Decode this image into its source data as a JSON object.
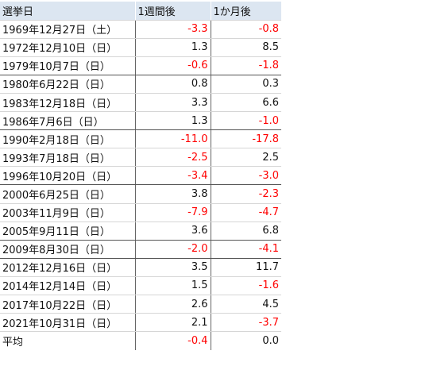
{
  "headers": {
    "date": "選挙日",
    "week": "1週間後",
    "month": "1か月後"
  },
  "rows": [
    {
      "date": "1969年12月27日（土）",
      "week": "-3.3",
      "month": "-0.8"
    },
    {
      "date": "1972年12月10日（日）",
      "week": "1.3",
      "month": "8.5"
    },
    {
      "date": "1979年10月7日（日）",
      "week": "-0.6",
      "month": "-1.8"
    },
    {
      "date": "1980年6月22日（日）",
      "week": "0.8",
      "month": "0.3"
    },
    {
      "date": "1983年12月18日（日）",
      "week": "3.3",
      "month": "6.6"
    },
    {
      "date": "1986年7月6日（日）",
      "week": "1.3",
      "month": "-1.0"
    },
    {
      "date": "1990年2月18日（日）",
      "week": "-11.0",
      "month": "-17.8"
    },
    {
      "date": "1993年7月18日（日）",
      "week": "-2.5",
      "month": "2.5"
    },
    {
      "date": "1996年10月20日（日）",
      "week": "-3.4",
      "month": "-3.0"
    },
    {
      "date": "2000年6月25日（日）",
      "week": "3.8",
      "month": "-2.3"
    },
    {
      "date": "2003年11月9日（日）",
      "week": "-7.9",
      "month": "-4.7"
    },
    {
      "date": "2005年9月11日（日）",
      "week": "3.6",
      "month": "6.8"
    },
    {
      "date": "2009年8月30日（日）",
      "week": "-2.0",
      "month": "-4.1"
    },
    {
      "date": "2012年12月16日（日）",
      "week": "3.5",
      "month": "11.7"
    },
    {
      "date": "2014年12月14日（日）",
      "week": "1.5",
      "month": "-1.6"
    },
    {
      "date": "2017年10月22日（日）",
      "week": "2.6",
      "month": "4.5"
    },
    {
      "date": "2021年10月31日（日）",
      "week": "2.1",
      "month": "-3.7"
    }
  ],
  "average": {
    "label": "平均",
    "week": "-0.4",
    "month": "0.0"
  },
  "colors": {
    "negative": "#ff0000",
    "header_bg": "#dce6f1"
  }
}
